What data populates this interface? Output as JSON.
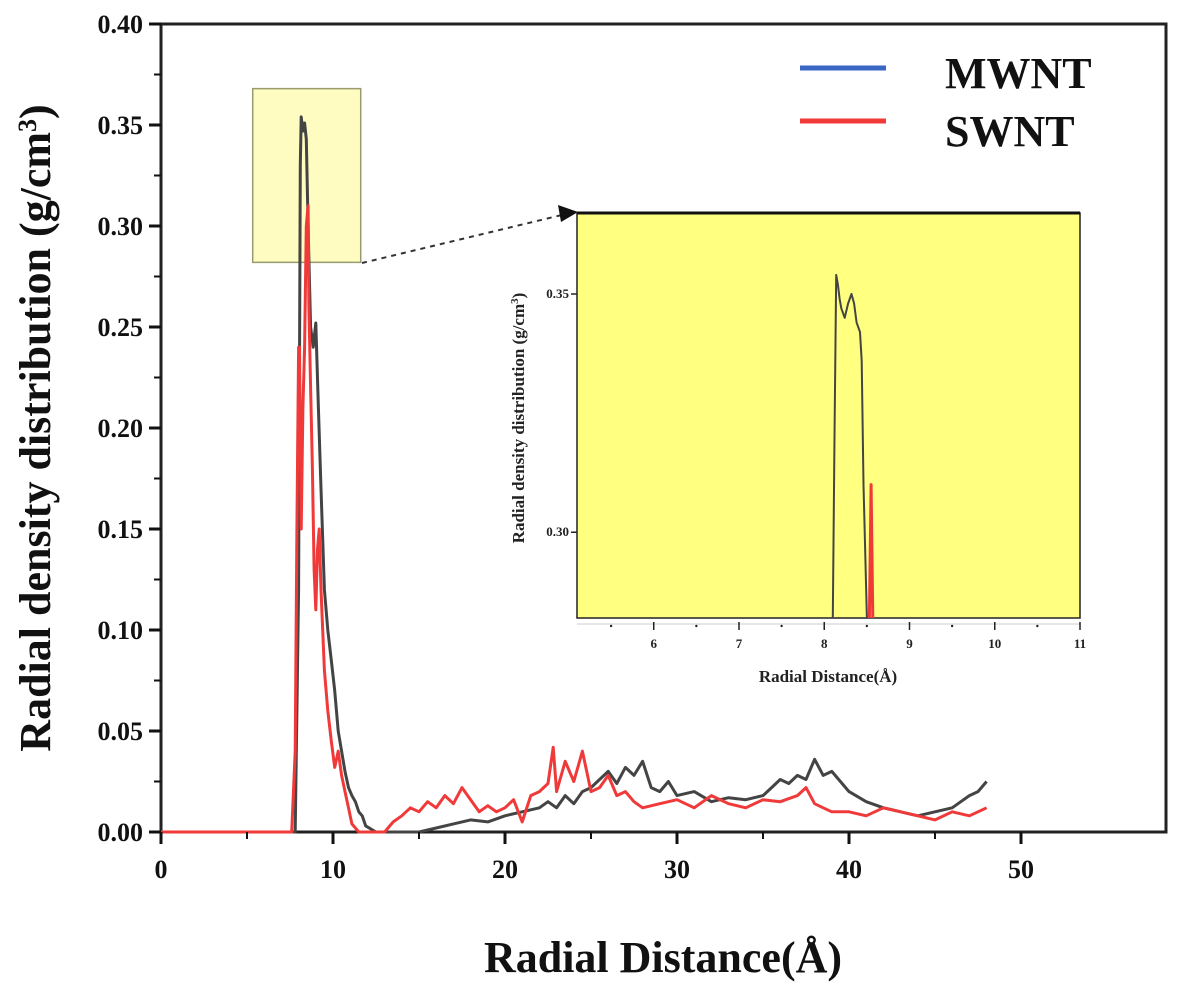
{
  "chart_data": {
    "type": "line",
    "title": "",
    "xlabel": "Radial Distance(Å)",
    "ylabel": "Radial density distribution (g/cm³)",
    "ylabel_parts": {
      "main": "Radial density distribution (g/cm",
      "sup": "3",
      "close": ")"
    },
    "xlim": [
      0,
      55
    ],
    "ylim": [
      0,
      0.4
    ],
    "xticks": [
      0,
      10,
      20,
      30,
      40,
      50
    ],
    "xtick_labels": [
      "0",
      "10",
      "20",
      "30",
      "40",
      "50"
    ],
    "yticks": [
      0.0,
      0.05,
      0.1,
      0.15,
      0.2,
      0.25,
      0.3,
      0.35,
      0.4
    ],
    "ytick_labels": [
      "0.00",
      "0.05",
      "0.10",
      "0.15",
      "0.20",
      "0.25",
      "0.30",
      "0.35",
      "0.40"
    ],
    "grid": false,
    "legend": {
      "placement": "top-right",
      "entries": [
        {
          "label": "MWNT",
          "color": "#3a66c4"
        },
        {
          "label": "SWNT",
          "color": "#f03a3a"
        }
      ]
    },
    "series": [
      {
        "name": "MWNT",
        "color": "#444444",
        "x": [
          0,
          7.8,
          8.0,
          8.1,
          8.15,
          8.25,
          8.35,
          8.45,
          8.55,
          8.7,
          8.85,
          9.0,
          9.15,
          9.3,
          9.5,
          9.7,
          9.9,
          10.1,
          10.3,
          10.5,
          10.7,
          10.9,
          11.1,
          11.3,
          11.5,
          11.7,
          11.9,
          12.5,
          15,
          16,
          17,
          18,
          19,
          20,
          21,
          22,
          22.5,
          23,
          23.5,
          24,
          24.5,
          25,
          25.5,
          26,
          26.5,
          27,
          27.5,
          28,
          28.5,
          29,
          29.5,
          30,
          31,
          32,
          33,
          34,
          35,
          35.5,
          36,
          36.5,
          37,
          37.5,
          38,
          38.5,
          39,
          39.5,
          40,
          41,
          42,
          43,
          44,
          45,
          46,
          46.5,
          47,
          47.5,
          48
        ],
        "y": [
          0,
          0,
          0.12,
          0.33,
          0.354,
          0.347,
          0.351,
          0.343,
          0.3,
          0.25,
          0.24,
          0.252,
          0.21,
          0.17,
          0.12,
          0.1,
          0.085,
          0.07,
          0.05,
          0.04,
          0.03,
          0.022,
          0.018,
          0.015,
          0.01,
          0.008,
          0.003,
          0,
          0,
          0.002,
          0.004,
          0.006,
          0.005,
          0.008,
          0.01,
          0.012,
          0.015,
          0.012,
          0.018,
          0.014,
          0.02,
          0.022,
          0.026,
          0.03,
          0.024,
          0.032,
          0.028,
          0.035,
          0.022,
          0.02,
          0.025,
          0.018,
          0.02,
          0.015,
          0.017,
          0.016,
          0.018,
          0.022,
          0.026,
          0.024,
          0.028,
          0.026,
          0.036,
          0.028,
          0.03,
          0.025,
          0.02,
          0.015,
          0.012,
          0.01,
          0.008,
          0.01,
          0.012,
          0.015,
          0.018,
          0.02,
          0.025
        ]
      },
      {
        "name": "SWNT",
        "color": "#f03a3a",
        "x": [
          0,
          7.6,
          7.8,
          7.9,
          8.0,
          8.05,
          8.15,
          8.25,
          8.35,
          8.45,
          8.55,
          8.6,
          8.7,
          8.8,
          8.9,
          9.0,
          9.1,
          9.2,
          9.3,
          9.4,
          9.5,
          9.7,
          9.9,
          10.1,
          10.3,
          10.5,
          10.7,
          10.9,
          11.1,
          11.5,
          13,
          13.5,
          14,
          14.5,
          15,
          15.5,
          16,
          16.5,
          17,
          17.5,
          18,
          18.5,
          19,
          19.5,
          20,
          20.5,
          21,
          21.5,
          22,
          22.5,
          22.8,
          23,
          23.5,
          24,
          24.5,
          25,
          25.5,
          26,
          26.5,
          27,
          27.5,
          28,
          29,
          30,
          31,
          32,
          33,
          34,
          35,
          36,
          37,
          37.5,
          38,
          38.5,
          39,
          40,
          41,
          42,
          43,
          44,
          45,
          46,
          47,
          48
        ],
        "y": [
          0,
          0,
          0.04,
          0.15,
          0.24,
          0.24,
          0.15,
          0.21,
          0.24,
          0.3,
          0.31,
          0.26,
          0.22,
          0.18,
          0.13,
          0.11,
          0.14,
          0.15,
          0.12,
          0.1,
          0.08,
          0.06,
          0.045,
          0.032,
          0.04,
          0.028,
          0.02,
          0.012,
          0.004,
          0,
          0,
          0.005,
          0.008,
          0.012,
          0.01,
          0.015,
          0.012,
          0.018,
          0.014,
          0.022,
          0.016,
          0.01,
          0.013,
          0.01,
          0.012,
          0.016,
          0.005,
          0.018,
          0.02,
          0.024,
          0.042,
          0.02,
          0.035,
          0.025,
          0.04,
          0.02,
          0.022,
          0.028,
          0.018,
          0.02,
          0.015,
          0.012,
          0.014,
          0.016,
          0.012,
          0.018,
          0.014,
          0.012,
          0.016,
          0.015,
          0.018,
          0.022,
          0.014,
          0.012,
          0.01,
          0.01,
          0.008,
          0.012,
          0.01,
          0.008,
          0.006,
          0.01,
          0.008,
          0.012
        ]
      }
    ],
    "highlight_region": {
      "xlim": [
        5.1,
        11
      ],
      "ylim": [
        0.282,
        0.368
      ]
    },
    "inset": {
      "type": "line",
      "xlabel": "Radial Distance(Å)",
      "ylabel": "Radial density distribution (g/cm³)",
      "ylabel_parts": {
        "main": "Radial density distribution (g/cm",
        "sup": "3",
        "close": ")"
      },
      "xlim": [
        5.1,
        11
      ],
      "ylim": [
        0.282,
        0.367
      ],
      "xticks": [
        6,
        7,
        8,
        9,
        10,
        11
      ],
      "xtick_labels": [
        "6",
        "7",
        "8",
        "9",
        "10",
        "11"
      ],
      "yticks": [
        0.3,
        0.35
      ],
      "ytick_labels": [
        "0.30",
        "0.35"
      ],
      "background": "#ffff80",
      "series": [
        {
          "name": "MWNT",
          "color": "#444444",
          "x": [
            8.1,
            8.12,
            8.14,
            8.16,
            8.18,
            8.2,
            8.24,
            8.28,
            8.32,
            8.35,
            8.38,
            8.42,
            8.44,
            8.46,
            8.5
          ],
          "y": [
            0.282,
            0.32,
            0.354,
            0.352,
            0.349,
            0.347,
            0.345,
            0.348,
            0.35,
            0.348,
            0.344,
            0.342,
            0.336,
            0.31,
            0.282
          ]
        },
        {
          "name": "SWNT",
          "color": "#f03a3a",
          "x": [
            8.53,
            8.55,
            8.57
          ],
          "y": [
            0.282,
            0.31,
            0.282
          ]
        }
      ]
    }
  }
}
